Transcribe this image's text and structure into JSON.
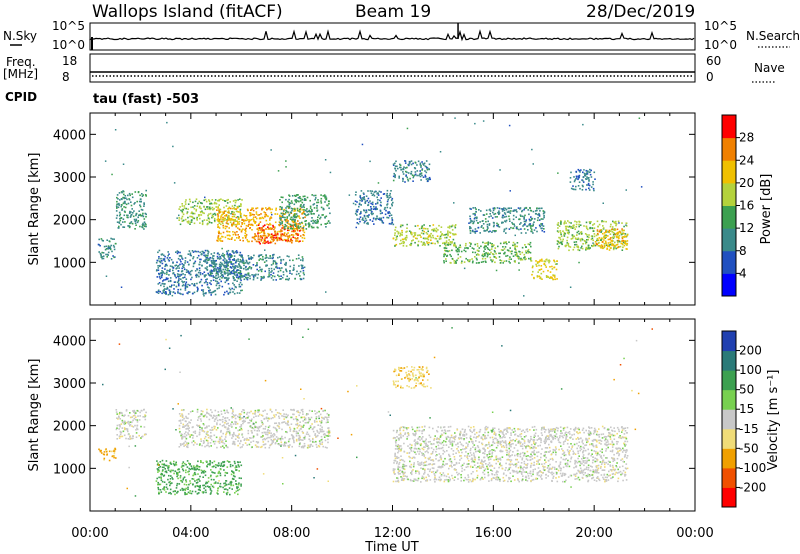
{
  "header": {
    "station": "Wallops Island (fitACF)",
    "beam": "Beam 19",
    "date": "28/Dec/2019"
  },
  "params": {
    "nsky_label": "N.Sky",
    "nsky_ticks": [
      "10^5",
      "10^0"
    ],
    "nsearch_label": "N.Search",
    "freq_label_1": "Freq.",
    "freq_label_2": "[MHz]",
    "freq_ticks": [
      "18",
      "8"
    ],
    "nave_label": "Nave",
    "nave_ticks": [
      "60",
      "0"
    ],
    "cpid_label": "CPID",
    "cpid_value": "tau (fast) -503"
  },
  "colors": {
    "power_scale": [
      "#0000ff",
      "#2050c0",
      "#3a8a8a",
      "#3ca050",
      "#b4d23c",
      "#f0c000",
      "#f08000",
      "#ff0000"
    ],
    "velocity_scale": [
      "#ff0000",
      "#f05000",
      "#f0a000",
      "#f0dc78",
      "#c8c8c8",
      "#78d050",
      "#3ca050",
      "#2a7a78",
      "#2040b0"
    ]
  },
  "chart_data": [
    {
      "type": "heatmap",
      "panel": "power",
      "xlabel": "",
      "ylabel": "Slant Range [km]",
      "x_ticks": [
        "00:00",
        "04:00",
        "08:00",
        "12:00",
        "16:00",
        "20:00",
        "00:00"
      ],
      "xlim_hours": [
        0,
        24
      ],
      "ylim": [
        0,
        4500
      ],
      "y_ticks": [
        "1000",
        "2000",
        "3000",
        "4000"
      ],
      "colorbar_label": "Power [dB]",
      "colorbar_ticks": [
        "4",
        "8",
        "12",
        "16",
        "20",
        "24",
        "28"
      ],
      "colorbar_range": [
        0,
        32
      ],
      "echo_regions": [
        {
          "t_start": 0.3,
          "t_end": 1.0,
          "r_min": 1100,
          "r_max": 1600,
          "value": 10
        },
        {
          "t_start": 1.0,
          "t_end": 2.2,
          "r_min": 1800,
          "r_max": 2700,
          "value": 11
        },
        {
          "t_start": 2.6,
          "t_end": 6.0,
          "r_min": 250,
          "r_max": 1300,
          "value": 9
        },
        {
          "t_start": 4.5,
          "t_end": 8.5,
          "r_min": 600,
          "r_max": 1200,
          "value": 10
        },
        {
          "t_start": 3.5,
          "t_end": 6.0,
          "r_min": 1900,
          "r_max": 2500,
          "value": 17
        },
        {
          "t_start": 5.0,
          "t_end": 8.5,
          "r_min": 1500,
          "r_max": 2300,
          "value": 23
        },
        {
          "t_start": 6.5,
          "t_end": 8.3,
          "r_min": 1450,
          "r_max": 1900,
          "value": 27
        },
        {
          "t_start": 7.5,
          "t_end": 9.5,
          "r_min": 1800,
          "r_max": 2600,
          "value": 13
        },
        {
          "t_start": 10.5,
          "t_end": 12.0,
          "r_min": 1900,
          "r_max": 2700,
          "value": 9
        },
        {
          "t_start": 12.0,
          "t_end": 13.5,
          "r_min": 2900,
          "r_max": 3400,
          "value": 10
        },
        {
          "t_start": 12.0,
          "t_end": 14.5,
          "r_min": 1400,
          "r_max": 1900,
          "value": 18
        },
        {
          "t_start": 14.0,
          "t_end": 17.5,
          "r_min": 1000,
          "r_max": 1500,
          "value": 15
        },
        {
          "t_start": 15.0,
          "t_end": 18.0,
          "r_min": 1700,
          "r_max": 2300,
          "value": 10
        },
        {
          "t_start": 17.5,
          "t_end": 18.5,
          "r_min": 600,
          "r_max": 1100,
          "value": 21
        },
        {
          "t_start": 18.5,
          "t_end": 21.3,
          "r_min": 1300,
          "r_max": 2000,
          "value": 17
        },
        {
          "t_start": 20.0,
          "t_end": 21.3,
          "r_min": 1300,
          "r_max": 1800,
          "value": 23
        },
        {
          "t_start": 19.0,
          "t_end": 20.0,
          "r_min": 2700,
          "r_max": 3200,
          "value": 9
        }
      ]
    },
    {
      "type": "heatmap",
      "panel": "velocity",
      "xlabel": "Time UT",
      "ylabel": "Slant Range [km]",
      "x_ticks": [
        "00:00",
        "04:00",
        "08:00",
        "12:00",
        "16:00",
        "20:00",
        "00:00"
      ],
      "xlim_hours": [
        0,
        24
      ],
      "ylim": [
        0,
        4500
      ],
      "y_ticks": [
        "1000",
        "2000",
        "3000",
        "4000"
      ],
      "colorbar_label": "Velocity [m s⁻¹]",
      "colorbar_ticks": [
        "200",
        "100",
        "50",
        "15",
        "-15",
        "-50",
        "-100",
        "-200"
      ],
      "echo_regions": [
        {
          "t_start": 0.3,
          "t_end": 1.0,
          "r_min": 1200,
          "r_max": 1500,
          "value": -60
        },
        {
          "t_start": 1.0,
          "t_end": 2.2,
          "r_min": 1700,
          "r_max": 2400,
          "value": 0
        },
        {
          "t_start": 2.6,
          "t_end": 6.0,
          "r_min": 400,
          "r_max": 1200,
          "value": 60
        },
        {
          "t_start": 3.5,
          "t_end": 9.5,
          "r_min": 1500,
          "r_max": 2400,
          "value": 0
        },
        {
          "t_start": 12.0,
          "t_end": 21.3,
          "r_min": 700,
          "r_max": 2000,
          "value": 0
        },
        {
          "t_start": 12.0,
          "t_end": 13.5,
          "r_min": 2900,
          "r_max": 3400,
          "value": -40
        }
      ]
    }
  ]
}
